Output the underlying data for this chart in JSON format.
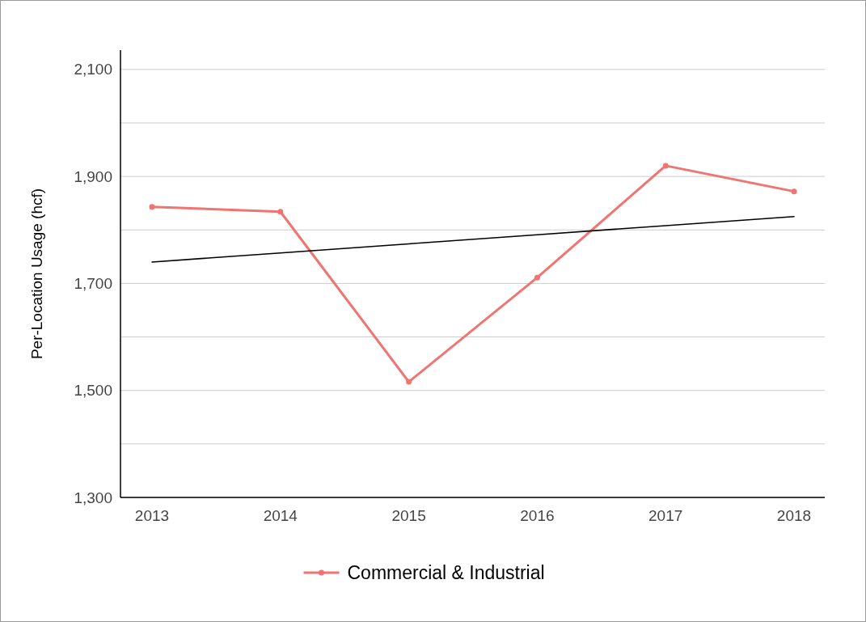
{
  "chart_data": {
    "type": "line",
    "ylabel": "Per-Location Usage (hcf)",
    "categories": [
      "2013",
      "2014",
      "2015",
      "2016",
      "2017",
      "2018"
    ],
    "series": [
      {
        "name": "Commercial & Industrial",
        "color": "#f07470",
        "values": [
          1843,
          1834,
          1516,
          1711,
          1920,
          1872
        ],
        "marker": "circle"
      },
      {
        "color": "#000000",
        "values": [
          1740,
          1757,
          1774,
          1791,
          1808,
          1825
        ],
        "marker": "none"
      }
    ],
    "ylim": [
      1300,
      2136
    ],
    "yticks": [
      {
        "value": 1300,
        "label": "1,300"
      },
      {
        "value": 1400,
        "label": null
      },
      {
        "value": 1500,
        "label": "1,500"
      },
      {
        "value": 1600,
        "label": null
      },
      {
        "value": 1700,
        "label": "1,700"
      },
      {
        "value": 1800,
        "label": null
      },
      {
        "value": 1900,
        "label": "1,900"
      },
      {
        "value": 2000,
        "label": null
      },
      {
        "value": 2100,
        "label": "2,100"
      }
    ],
    "grid": "y",
    "legend": "bottom"
  }
}
